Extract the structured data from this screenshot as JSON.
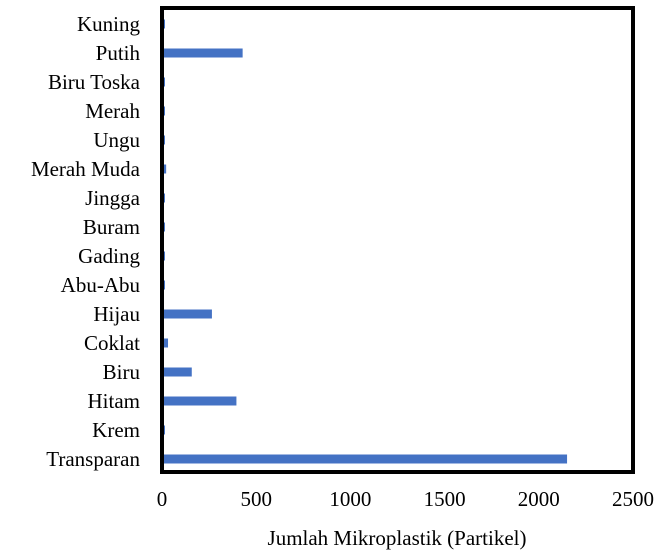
{
  "chart_data": {
    "type": "bar",
    "orientation": "horizontal",
    "categories": [
      "Transparan",
      "Krem",
      "Hitam",
      "Biru",
      "Coklat",
      "Hijau",
      "Abu-Abu",
      "Gading",
      "Buram",
      "Jingga",
      "Merah Muda",
      "Ungu",
      "Merah",
      "Biru Toska",
      "Putih",
      "Kuning"
    ],
    "values": [
      2150,
      3,
      395,
      158,
      32,
      265,
      15,
      3,
      5,
      3,
      22,
      3,
      5,
      12,
      428,
      2
    ],
    "title": "",
    "xlabel": "Jumlah Mikroplastik (Partikel)",
    "ylabel": "",
    "xlim": [
      0,
      2500
    ],
    "xticks": [
      0,
      500,
      1000,
      1500,
      2000,
      2500
    ],
    "grid": false,
    "bar_color": "#4472C4",
    "frame_color": "#000000"
  }
}
